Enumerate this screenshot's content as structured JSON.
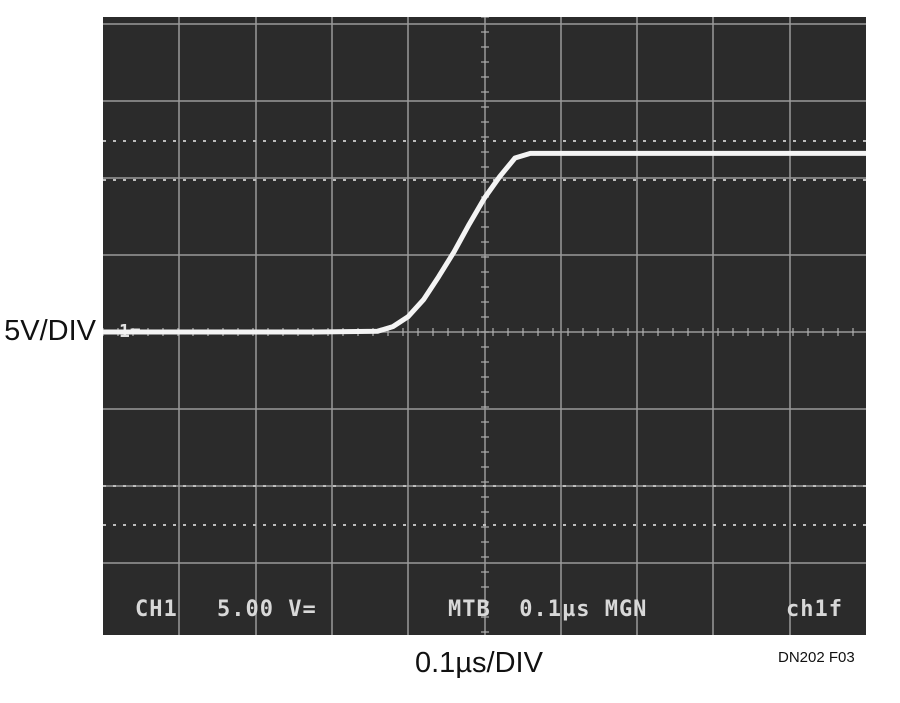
{
  "chart_data": {
    "type": "line",
    "title": "",
    "xlabel": "0.1µs/DIV",
    "ylabel": "5V/DIV",
    "x_unit": "µs",
    "y_unit": "V",
    "xlim": [
      0,
      1.0
    ],
    "ylim": [
      -10,
      15
    ],
    "grid": true,
    "ground_marker": "1=",
    "series": [
      {
        "x": [
          0,
          0.1,
          0.2,
          0.28,
          0.36,
          0.38,
          0.4,
          0.42,
          0.44,
          0.46,
          0.48,
          0.5,
          0.52,
          0.54,
          0.56,
          0.58,
          0.6,
          0.7,
          0.8,
          0.9,
          1.0
        ],
        "y": [
          0,
          0,
          0,
          0,
          0.05,
          0.35,
          1.0,
          2.1,
          3.6,
          5.2,
          7.0,
          8.7,
          10.1,
          11.3,
          11.6,
          11.6,
          11.6,
          11.6,
          11.6,
          11.6,
          11.6
        ]
      }
    ]
  },
  "readout": {
    "ch1": "CH1",
    "scale": "5.00 V=",
    "timebase": "MTB  0.1µs MGN",
    "mode": "ch1f"
  },
  "labels": {
    "vdiv": "5V/DIV",
    "tdiv": "0.1µs/DIV",
    "figure_id": "DN202 F03"
  }
}
